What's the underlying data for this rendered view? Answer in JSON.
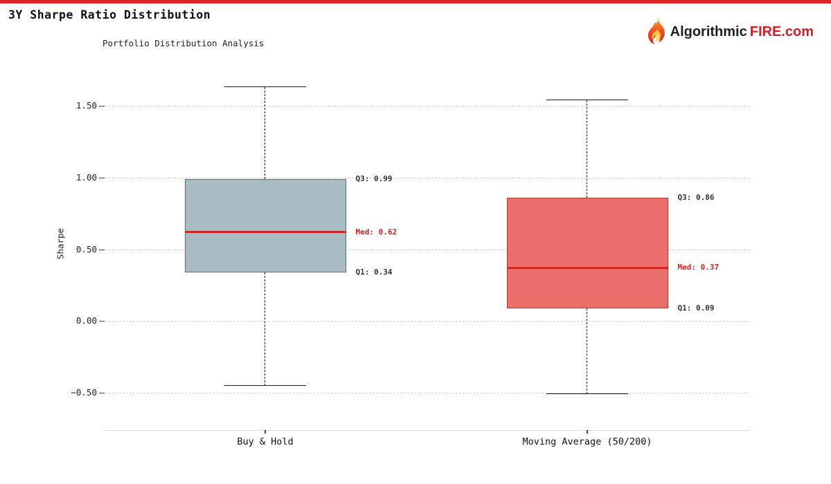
{
  "page": {
    "top_bar_color": "#dc2222",
    "background": "#ffffff"
  },
  "header": {
    "title": "3Y Sharpe Ratio Distribution",
    "subtitle": "Portfolio Distribution Analysis"
  },
  "brand": {
    "icon": "flame-icon",
    "text_dark": "Algorithmic",
    "text_red": "FIRE.com",
    "red_color": "#cc1f27",
    "dark_color": "#1f1f1f"
  },
  "chart_data": {
    "type": "boxplot",
    "title": "3Y Sharpe Ratio Distribution",
    "subtitle": "Portfolio Distribution Analysis",
    "ylabel": "Sharpe",
    "xlabel": "",
    "ylim": [
      -0.76,
      1.76
    ],
    "yticks": [
      1.5,
      1.0,
      0.5,
      0.0,
      -0.5
    ],
    "ytick_labels": [
      "1.50",
      "1.00",
      "0.50",
      "0.00",
      "−0.50"
    ],
    "grid": "horizontal-dashed",
    "legend": "none",
    "categories": [
      "Buy & Hold",
      "Moving Average (50/200)"
    ],
    "series": [
      {
        "name": "Buy & Hold",
        "whisker_low": -0.45,
        "q1": 0.34,
        "median": 0.62,
        "q3": 0.99,
        "whisker_high": 1.63,
        "fill_color": "#a9bbc3",
        "edge_color": "#5a6e78",
        "annotations": {
          "q3": "Q3: 0.99",
          "med": "Med: 0.62",
          "q1": "Q1: 0.34"
        }
      },
      {
        "name": "Moving Average (50/200)",
        "whisker_low": -0.51,
        "q1": 0.09,
        "median": 0.37,
        "q3": 0.86,
        "whisker_high": 1.54,
        "fill_color": "#ed6f6b",
        "edge_color": "#b23b30",
        "annotations": {
          "q3": "Q3: 0.86",
          "med": "Med: 0.37",
          "q1": "Q1: 0.09"
        }
      }
    ],
    "median_color": "#d42323",
    "annotation_color": "#333333",
    "median_annotation_color": "#d42323"
  }
}
